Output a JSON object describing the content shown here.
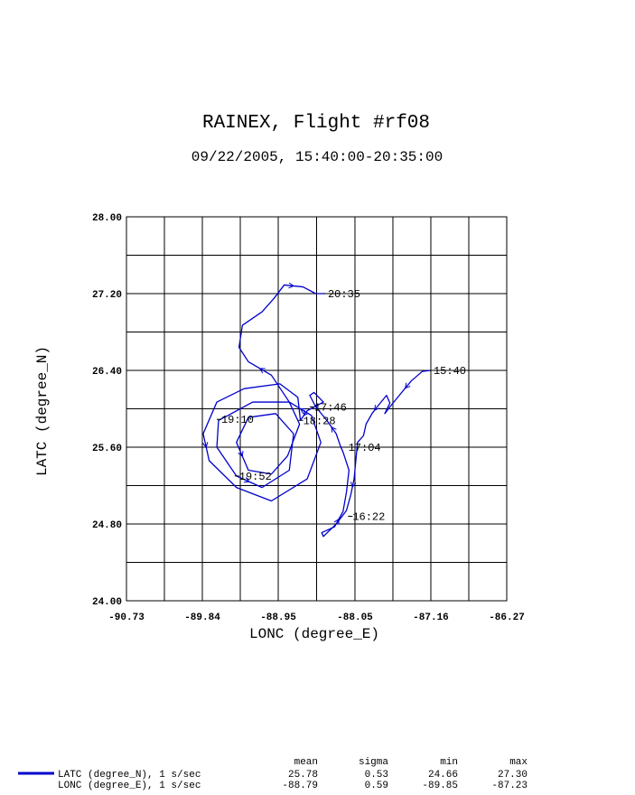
{
  "chart_data": {
    "type": "line",
    "title": "RAINEX, Flight #rf08",
    "subtitle": "09/22/2005, 15:40:00-20:35:00",
    "xlabel": "LONC (degree_E)",
    "ylabel": "LATC (degree_N)",
    "xlim": [
      -90.73,
      -86.27
    ],
    "ylim": [
      24.0,
      28.0
    ],
    "xticks": [
      -90.73,
      -89.84,
      -88.95,
      -88.05,
      -87.16,
      -86.27
    ],
    "yticks": [
      {
        "value": 24.0,
        "label": "24.00"
      },
      {
        "value": 24.8,
        "label": "24.80"
      },
      {
        "value": 25.6,
        "label": "25.60"
      },
      {
        "value": 26.4,
        "label": "26.40"
      },
      {
        "value": 27.2,
        "label": "27.20"
      },
      {
        "value": 28.0,
        "label": "28.00"
      }
    ],
    "grid": true,
    "series": [
      {
        "name": "LATC (degree_N), 1 s/sec",
        "color": "#0000cc",
        "x": [
          -87.16,
          -87.26,
          -87.39,
          -87.53,
          -87.64,
          -87.7,
          -87.64,
          -87.68,
          -87.79,
          -87.85,
          -87.92,
          -87.95,
          -88.02,
          -88.04,
          -88.06,
          -88.1,
          -88.15,
          -88.27,
          -88.42,
          -88.44,
          -88.29,
          -88.19,
          -88.15,
          -88.12,
          -88.19,
          -88.22,
          -88.27,
          -88.38,
          -88.51,
          -88.58,
          -88.53,
          -88.42,
          -88.61,
          -88.69,
          -88.72,
          -88.93,
          -89.35,
          -89.67,
          -89.83,
          -89.76,
          -89.44,
          -89.03,
          -88.61,
          -88.45,
          -88.56,
          -88.82,
          -89.25,
          -89.54,
          -89.65,
          -89.67,
          -89.44,
          -89.14,
          -88.82,
          -88.77,
          -88.98,
          -89.3,
          -89.44,
          -89.3,
          -89.03,
          -88.84,
          -88.7,
          -88.82,
          -89.03,
          -89.3,
          -89.41,
          -89.37,
          -89.14,
          -89.0,
          -88.88,
          -88.66,
          -88.51,
          -88.4
        ],
        "values": [
          26.4,
          26.39,
          26.29,
          26.14,
          26.02,
          25.95,
          26.06,
          26.14,
          26.02,
          25.95,
          25.84,
          25.72,
          25.65,
          25.46,
          25.27,
          25.1,
          24.94,
          24.8,
          24.67,
          24.71,
          24.77,
          24.93,
          25.13,
          25.36,
          25.55,
          25.61,
          25.74,
          25.88,
          26.02,
          26.14,
          26.17,
          26.07,
          25.98,
          25.88,
          26.12,
          26.26,
          26.21,
          26.07,
          25.74,
          25.46,
          25.18,
          25.04,
          25.27,
          25.65,
          25.93,
          26.07,
          26.07,
          25.93,
          25.88,
          25.6,
          25.3,
          25.18,
          25.36,
          25.74,
          25.95,
          25.91,
          25.65,
          25.36,
          25.32,
          25.51,
          25.84,
          26.07,
          26.35,
          26.49,
          26.64,
          26.87,
          27.01,
          27.15,
          27.29,
          27.27,
          27.2,
          27.2
        ]
      }
    ],
    "annotations": [
      {
        "text": "15:40",
        "x": -87.16,
        "y": 26.4
      },
      {
        "text": "16:22",
        "x": -88.11,
        "y": 24.88
      },
      {
        "text": "17:04",
        "x": -88.16,
        "y": 25.6
      },
      {
        "text": "17:46",
        "x": -88.56,
        "y": 26.02
      },
      {
        "text": "18:28",
        "x": -88.69,
        "y": 25.88
      },
      {
        "text": "19:10",
        "x": -89.65,
        "y": 25.89
      },
      {
        "text": "19:52",
        "x": -89.44,
        "y": 25.3
      },
      {
        "text": "20:35",
        "x": -88.4,
        "y": 27.2
      }
    ]
  },
  "stats": {
    "columns": [
      "mean",
      "sigma",
      "min",
      "max"
    ],
    "rows": [
      {
        "cells": [
          "25.78",
          "0.53",
          "24.66",
          "27.30"
        ]
      },
      {
        "label": "LONC (degree_E), 1 s/sec",
        "cells": [
          "-88.79",
          "0.59",
          "-89.85",
          "-87.23"
        ]
      }
    ]
  }
}
